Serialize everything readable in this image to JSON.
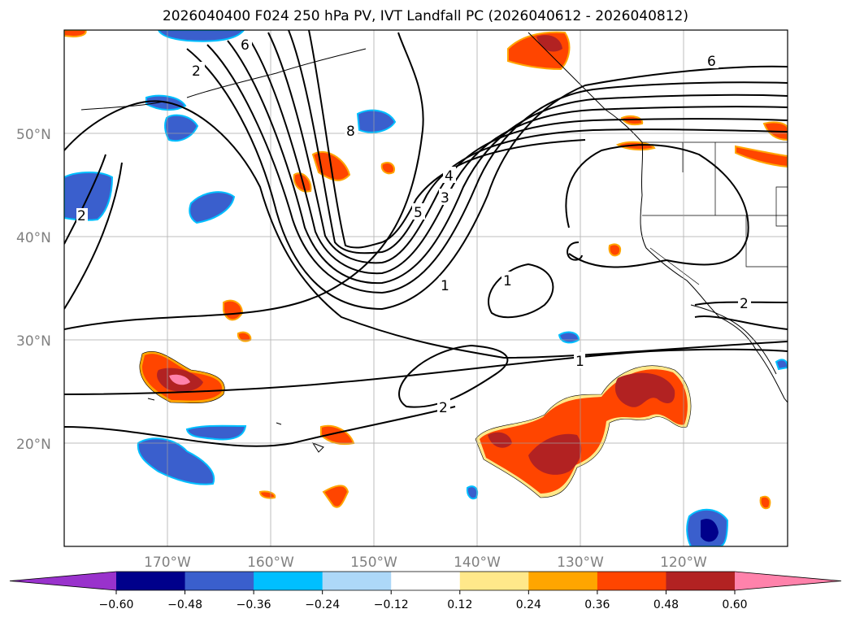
{
  "title": "2026040400 F024 250 hPa PV, IVT Landfall PC (2026040612 - 2026040812)",
  "map": {
    "lon_range": [
      -180,
      -110
    ],
    "lat_range": [
      10,
      60
    ],
    "lon_ticks": [
      {
        "value": -170,
        "label": "170°W"
      },
      {
        "value": -160,
        "label": "160°W"
      },
      {
        "value": -150,
        "label": "150°W"
      },
      {
        "value": -140,
        "label": "140°W"
      },
      {
        "value": -130,
        "label": "130°W"
      },
      {
        "value": -120,
        "label": "120°W"
      }
    ],
    "lat_ticks": [
      {
        "value": 20,
        "label": "20°N"
      },
      {
        "value": 30,
        "label": "30°N"
      },
      {
        "value": 40,
        "label": "40°N"
      },
      {
        "value": 50,
        "label": "50°N"
      }
    ],
    "gridlines": true,
    "contour_labels": [
      "2",
      "6",
      "8",
      "5",
      "4",
      "3",
      "1",
      "1",
      "2",
      "1",
      "2",
      "6",
      "2"
    ]
  },
  "colorbar": {
    "extend": "both",
    "ticks": [
      "−0.60",
      "−0.48",
      "−0.36",
      "−0.24",
      "−0.12",
      "0.12",
      "0.24",
      "0.36",
      "0.48",
      "0.60"
    ],
    "colors": [
      "#9932cc",
      "#00008b",
      "#3a5fcd",
      "#00bfff",
      "#add8f8",
      "#ffffff",
      "#ffe88a",
      "#ffa500",
      "#ff4500",
      "#b22222",
      "#ff82ab"
    ]
  }
}
